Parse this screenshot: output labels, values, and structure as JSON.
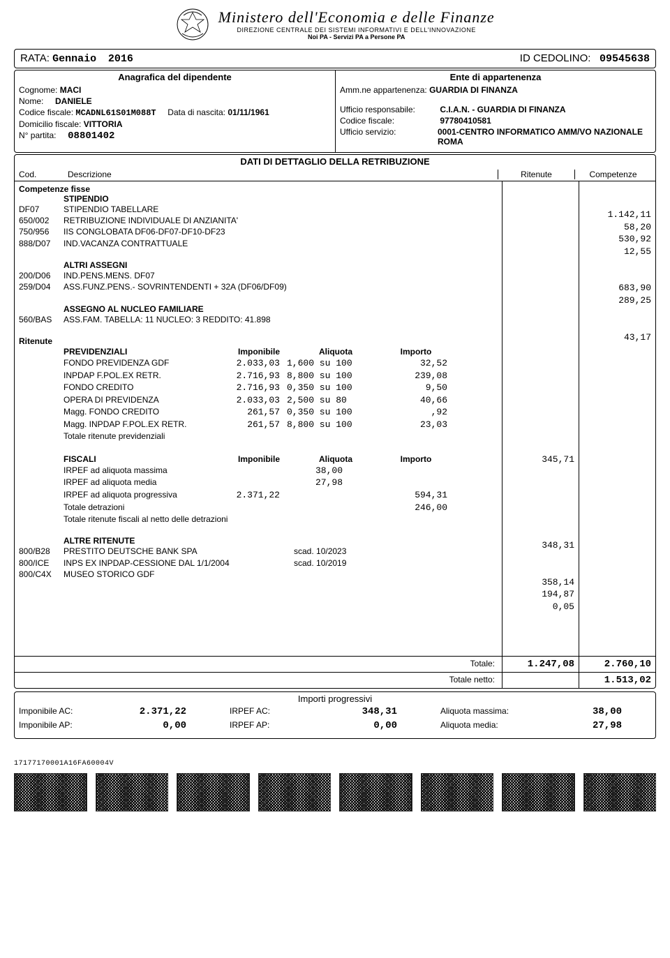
{
  "header": {
    "ministry": "Ministero dell'Economia e delle Finanze",
    "dept": "DIREZIONE CENTRALE DEI SISTEMI INFORMATIVI E DELL'INNOVAZIONE",
    "motto": "Noi PA - Servizi PA a Persone PA"
  },
  "topbar": {
    "rata_label": "RATA:",
    "rata_month": "Gennaio",
    "rata_year": "2016",
    "cedolino_label": "ID CEDOLINO:",
    "cedolino_id": "09545638"
  },
  "anagrafica": {
    "title": "Anagrafica del dipendente",
    "cognome_label": "Cognome:",
    "cognome": "MACI",
    "nome_label": "Nome:",
    "nome": "DANIELE",
    "cf_label": "Codice fiscale:",
    "cf": "MCADNL61S01M088T",
    "dn_label": "Data di nascita:",
    "dn": "01/11/1961",
    "dom_label": "Domicilio fiscale:",
    "dom": "VITTORIA",
    "partita_label": "N° partita:",
    "partita": "08801402"
  },
  "ente": {
    "title": "Ente di appartenenza",
    "amm_label": "Amm.ne appartenenza:",
    "amm": "GUARDIA DI FINANZA",
    "uff_resp_label": "Ufficio responsabile:",
    "uff_resp": "C.I.A.N. - GUARDIA DI FINANZA",
    "cf_label": "Codice fiscale:",
    "cf": "97780410581",
    "uff_serv_label": "Ufficio servizio:",
    "uff_serv": "0001-CENTRO INFORMATICO AMM/VO NAZIONALE ROMA"
  },
  "detail": {
    "title": "DATI DI DETTAGLIO DELLA RETRIBUZIONE",
    "col_cod": "Cod.",
    "col_descr": "Descrizione",
    "col_rit": "Ritenute",
    "col_comp": "Competenze"
  },
  "comp_fisse_h": "Competenze fisse",
  "stipendio_h": "STIPENDIO",
  "stipendio_rows": [
    {
      "cod": "DF07",
      "descr": "STIPENDIO TABELLARE",
      "comp": "1.142,11"
    },
    {
      "cod": "650/002",
      "descr": "RETRIBUZIONE INDIVIDUALE DI ANZIANITA'",
      "comp": "58,20"
    },
    {
      "cod": "750/956",
      "descr": "IIS CONGLOBATA DF06-DF07-DF10-DF23",
      "comp": "530,92"
    },
    {
      "cod": "888/D07",
      "descr": "IND.VACANZA CONTRATTUALE",
      "comp": "12,55"
    }
  ],
  "altri_h": "ALTRI ASSEGNI",
  "altri_rows": [
    {
      "cod": "200/D06",
      "descr": "IND.PENS.MENS. DF07",
      "comp": "683,90"
    },
    {
      "cod": "259/D04",
      "descr": "ASS.FUNZ.PENS.- SOVRINTENDENTI + 32A (DF06/DF09)",
      "comp": "289,25"
    }
  ],
  "anf_h": "ASSEGNO AL NUCLEO FAMILIARE",
  "anf_rows": [
    {
      "cod": "560/BAS",
      "descr": "ASS.FAM. TABELLA: 11  NUCLEO:  3 REDDITO:  41.898",
      "comp": "43,17"
    }
  ],
  "ritenute_h": "Ritenute",
  "prev_h": "PREVIDENZIALI",
  "prev_cols": {
    "imp": "Imponibile",
    "aliq": "Aliquota",
    "importo": "Importo"
  },
  "prev_rows": [
    {
      "descr": "FONDO PREVIDENZA GDF",
      "imp": "2.033,03",
      "aliq": "1,600 su 100",
      "importo": "32,52"
    },
    {
      "descr": "INPDAP F.POL.EX RETR.",
      "imp": "2.716,93",
      "aliq": "8,800 su 100",
      "importo": "239,08"
    },
    {
      "descr": "FONDO CREDITO",
      "imp": "2.716,93",
      "aliq": "0,350 su 100",
      "importo": "9,50"
    },
    {
      "descr": "OPERA DI PREVIDENZA",
      "imp": "2.033,03",
      "aliq": "2,500 su  80",
      "importo": "40,66"
    },
    {
      "descr": "Magg. FONDO CREDITO",
      "imp": "261,57",
      "aliq": "0,350 su 100",
      "importo": ",92"
    },
    {
      "descr": "Magg. INPDAP F.POL.EX RETR.",
      "imp": "261,57",
      "aliq": "8,800 su 100",
      "importo": "23,03"
    }
  ],
  "prev_total_label": "Totale ritenute previdenziali",
  "prev_total": "345,71",
  "fiscali_h": "FISCALI",
  "fiscali_rows": [
    {
      "descr": "IRPEF ad aliquota massima",
      "imp": "",
      "aliq": "38,00",
      "importo": ""
    },
    {
      "descr": "IRPEF ad aliquota media",
      "imp": "",
      "aliq": "27,98",
      "importo": ""
    },
    {
      "descr": "IRPEF ad aliquota progressiva",
      "imp": "2.371,22",
      "aliq": "",
      "importo": "594,31"
    },
    {
      "descr": "Totale detrazioni",
      "imp": "",
      "aliq": "",
      "importo": "246,00"
    }
  ],
  "fiscali_total_label": "Totale ritenute fiscali al netto delle detrazioni",
  "fiscali_total": "348,31",
  "altre_rit_h": "ALTRE RITENUTE",
  "altre_rit_rows": [
    {
      "cod": "800/B28",
      "descr": "PRESTITO DEUTSCHE BANK SPA",
      "scad": "scad. 10/2023",
      "rit": "358,14"
    },
    {
      "cod": "800/ICE",
      "descr": "INPS EX INPDAP-CESSIONE  DAL 1/1/2004",
      "scad": "scad. 10/2019",
      "rit": "194,87"
    },
    {
      "cod": "800/C4X",
      "descr": "MUSEO STORICO GDF",
      "scad": "",
      "rit": "0,05"
    }
  ],
  "totals": {
    "totale_label": "Totale:",
    "totale_rit": "1.247,08",
    "totale_comp": "2.760,10",
    "netto_label": "Totale netto:",
    "netto": "1.513,02"
  },
  "progressivi": {
    "title": "Importi progressivi",
    "imp_ac_label": "Imponibile AC:",
    "imp_ac": "2.371,22",
    "imp_ap_label": "Imponibile AP:",
    "imp_ap": "0,00",
    "irpef_ac_label": "IRPEF AC:",
    "irpef_ac": "348,31",
    "irpef_ap_label": "IRPEF AP:",
    "irpef_ap": "0,00",
    "aliq_max_label": "Aliquota massima:",
    "aliq_max": "38,00",
    "aliq_med_label": "Aliquota media:",
    "aliq_med": "27,98"
  },
  "footnote": "17177170001A16FA60004V"
}
